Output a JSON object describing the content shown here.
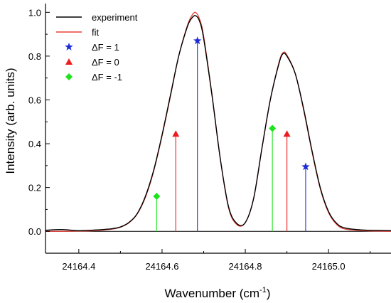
{
  "chart_data": {
    "type": "line",
    "title": "",
    "xlabel": "Wavenumber (cm",
    "xlabel_sup": "-1",
    "xlabel_close": ")",
    "ylabel": "Intensity (arb. units)",
    "xlim": [
      24164.32,
      24165.15
    ],
    "ylim": [
      -0.1,
      1.04
    ],
    "x_ticks": [
      24164.4,
      24164.6,
      24164.8,
      24165.0
    ],
    "x_tick_labels": [
      "24164.4",
      "24164.6",
      "24164.8",
      "24165.0"
    ],
    "y_ticks": [
      0.0,
      0.2,
      0.4,
      0.6,
      0.8,
      1.0
    ],
    "y_tick_labels": [
      "0.0",
      "0.2",
      "0.4",
      "0.6",
      "0.8",
      "1.0"
    ],
    "grid": false,
    "legend_position": "top-left",
    "series": [
      {
        "name": "experiment",
        "color": "#000000",
        "kind": "line",
        "x": [
          24164.32,
          24164.36,
          24164.4,
          24164.44,
          24164.48,
          24164.5,
          24164.52,
          24164.54,
          24164.56,
          24164.58,
          24164.6,
          24164.62,
          24164.64,
          24164.66,
          24164.67,
          24164.68,
          24164.69,
          24164.7,
          24164.72,
          24164.74,
          24164.76,
          24164.78,
          24164.8,
          24164.82,
          24164.84,
          24164.86,
          24164.88,
          24164.89,
          24164.9,
          24164.92,
          24164.94,
          24164.96,
          24164.98,
          24165.0,
          24165.02,
          24165.04,
          24165.08,
          24165.12,
          24165.15
        ],
        "y": [
          0.005,
          0.008,
          0.003,
          0.006,
          0.012,
          0.02,
          0.04,
          0.08,
          0.16,
          0.28,
          0.44,
          0.62,
          0.8,
          0.93,
          0.97,
          0.985,
          0.96,
          0.88,
          0.62,
          0.33,
          0.11,
          0.035,
          0.04,
          0.15,
          0.38,
          0.6,
          0.76,
          0.81,
          0.8,
          0.72,
          0.56,
          0.37,
          0.2,
          0.09,
          0.035,
          0.015,
          0.006,
          0.004,
          0.003
        ]
      },
      {
        "name": "fit",
        "color": "#e8413a",
        "kind": "line",
        "x": [
          24164.32,
          24164.36,
          24164.4,
          24164.44,
          24164.48,
          24164.5,
          24164.52,
          24164.54,
          24164.56,
          24164.58,
          24164.6,
          24164.62,
          24164.64,
          24164.66,
          24164.67,
          24164.68,
          24164.69,
          24164.7,
          24164.72,
          24164.74,
          24164.76,
          24164.78,
          24164.8,
          24164.82,
          24164.84,
          24164.86,
          24164.88,
          24164.89,
          24164.9,
          24164.92,
          24164.94,
          24164.96,
          24164.98,
          24165.0,
          24165.02,
          24165.04,
          24165.08,
          24165.12,
          24165.15
        ],
        "y": [
          0.0,
          0.0,
          0.001,
          0.003,
          0.01,
          0.019,
          0.038,
          0.078,
          0.155,
          0.275,
          0.435,
          0.615,
          0.8,
          0.935,
          0.98,
          1.0,
          0.97,
          0.89,
          0.625,
          0.33,
          0.105,
          0.03,
          0.04,
          0.15,
          0.38,
          0.6,
          0.765,
          0.815,
          0.805,
          0.72,
          0.555,
          0.365,
          0.195,
          0.085,
          0.03,
          0.01,
          0.003,
          0.001,
          0.0
        ]
      },
      {
        "name": "ΔF = 1",
        "color": "#1d2bd6",
        "kind": "stick",
        "marker": "star",
        "x": [
          24164.685,
          24164.945
        ],
        "y": [
          0.87,
          0.295
        ]
      },
      {
        "name": "ΔF = 0",
        "color": "#ee1c1c",
        "kind": "stick",
        "marker": "triangle",
        "x": [
          24164.633,
          24164.9
        ],
        "y": [
          0.445,
          0.445
        ]
      },
      {
        "name": "ΔF = -1",
        "color": "#1ce31c",
        "kind": "stick",
        "marker": "diamond",
        "x": [
          24164.587,
          24164.865
        ],
        "y": [
          0.16,
          0.47
        ]
      }
    ],
    "legend": [
      {
        "label": "experiment",
        "symbol": "line",
        "color": "#000000"
      },
      {
        "label": "fit",
        "symbol": "line",
        "color": "#e8413a"
      },
      {
        "label": "ΔF = 1",
        "symbol": "star",
        "color": "#1d2bd6"
      },
      {
        "label": "ΔF = 0",
        "symbol": "triangle",
        "color": "#ee1c1c"
      },
      {
        "label": "ΔF = -1",
        "symbol": "diamond",
        "color": "#1ce31c"
      }
    ]
  }
}
